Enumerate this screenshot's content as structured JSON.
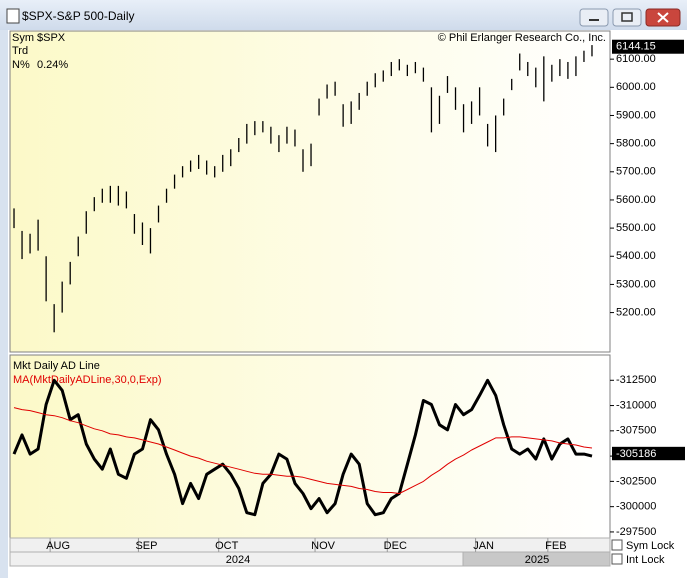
{
  "window": {
    "title": "$SPX-S&P 500-Daily"
  },
  "info": {
    "sym_label": "Sym",
    "sym_value": "$SPX",
    "trd_label": "Trd",
    "n_label": "N%",
    "n_value": "0.24%",
    "copyright": "© Phil Erlanger Research Co., Inc."
  },
  "controls": {
    "sym_lock": "Sym Lock",
    "int_lock": "Int Lock"
  },
  "years": [
    "2024",
    "2025"
  ],
  "chart_data": [
    {
      "type": "hilo",
      "color": "#000000",
      "high": [
        5570,
        5490,
        5480,
        5530,
        5400,
        5230,
        5310,
        5380,
        5470,
        5560,
        5610,
        5640,
        5650,
        5650,
        5630,
        5550,
        5520,
        5500,
        5580,
        5640,
        5690,
        5720,
        5740,
        5760,
        5740,
        5720,
        5760,
        5780,
        5820,
        5870,
        5880,
        5880,
        5860,
        5830,
        5860,
        5850,
        5780,
        5800,
        5960,
        6010,
        6020,
        5940,
        5950,
        5980,
        6020,
        6050,
        6060,
        6090,
        6100,
        6080,
        6090,
        6070,
        6000,
        5970,
        6040,
        6000,
        5940,
        5950,
        6000,
        5870,
        5900,
        5960,
        6030,
        6120,
        6090,
        6070,
        6110,
        6080,
        6100,
        6090,
        6110,
        6130,
        6150
      ],
      "low": [
        5500,
        5390,
        5410,
        5420,
        5240,
        5130,
        5200,
        5300,
        5400,
        5480,
        5560,
        5590,
        5590,
        5580,
        5570,
        5480,
        5440,
        5410,
        5520,
        5590,
        5640,
        5680,
        5700,
        5710,
        5690,
        5680,
        5700,
        5720,
        5770,
        5800,
        5830,
        5840,
        5800,
        5770,
        5800,
        5790,
        5700,
        5720,
        5900,
        5960,
        5970,
        5860,
        5870,
        5920,
        5970,
        6000,
        6020,
        6040,
        6060,
        6040,
        6050,
        6020,
        5840,
        5870,
        5980,
        5920,
        5840,
        5870,
        5900,
        5790,
        5770,
        5900,
        5990,
        6060,
        6040,
        6000,
        5950,
        6020,
        6040,
        6030,
        6040,
        6090,
        6110
      ],
      "last_value": 6144.15,
      "ylim": [
        5060,
        6200
      ],
      "yticks": [
        {
          "value": 5200,
          "label": "5200.00"
        },
        {
          "value": 5300,
          "label": "5300.00"
        },
        {
          "value": 5400,
          "label": "5400.00"
        },
        {
          "value": 5500,
          "label": "5500.00"
        },
        {
          "value": 5600,
          "label": "5600.00"
        },
        {
          "value": 5700,
          "label": "5700.00"
        },
        {
          "value": 5800,
          "label": "5800.00"
        },
        {
          "value": 5900,
          "label": "5900.00"
        },
        {
          "value": 6000,
          "label": "6000.00"
        },
        {
          "value": 6100,
          "label": "6100.00"
        }
      ]
    },
    {
      "type": "line",
      "categories": [
        null,
        null,
        null,
        null,
        null,
        "AUG",
        null,
        null,
        null,
        null,
        null,
        null,
        null,
        null,
        null,
        null,
        "SEP",
        null,
        null,
        null,
        null,
        null,
        null,
        null,
        null,
        null,
        "OCT",
        null,
        null,
        null,
        null,
        null,
        null,
        null,
        null,
        null,
        null,
        null,
        "NOV",
        null,
        null,
        null,
        null,
        null,
        null,
        null,
        null,
        "DEC",
        null,
        null,
        null,
        null,
        null,
        null,
        null,
        null,
        null,
        null,
        "JAN",
        null,
        null,
        null,
        null,
        null,
        null,
        null,
        null,
        "FEB",
        null,
        null,
        null,
        null,
        null
      ],
      "series": [
        {
          "name": "Mkt Daily AD Line",
          "color": "#000000",
          "width": 3,
          "values": [
            -305200,
            -307100,
            -305200,
            -305700,
            -310100,
            -312500,
            -311500,
            -308600,
            -309100,
            -306200,
            -304700,
            -303700,
            -305700,
            -303200,
            -302800,
            -305200,
            -305700,
            -308600,
            -307600,
            -305200,
            -303200,
            -300300,
            -302300,
            -300800,
            -303200,
            -303700,
            -304200,
            -303200,
            -301800,
            -299400,
            -299200,
            -302300,
            -303200,
            -305200,
            -304700,
            -302300,
            -301300,
            -299800,
            -300800,
            -299400,
            -300300,
            -303200,
            -305200,
            -304200,
            -300300,
            -299200,
            -299400,
            -300800,
            -301300,
            -304200,
            -307100,
            -310500,
            -310100,
            -308100,
            -307600,
            -310100,
            -309100,
            -309600,
            -311000,
            -312500,
            -311000,
            -308100,
            -305700,
            -305200,
            -305700,
            -304700,
            -306700,
            -304700,
            -306200,
            -306700,
            -305200,
            -305200,
            -305000
          ],
          "last_value": -305186
        },
        {
          "name": "MA(MktDailyADLine,30,0,Exp)",
          "color": "#e00000",
          "width": 1,
          "values": [
            -309800,
            -309600,
            -309500,
            -309300,
            -309100,
            -309000,
            -308800,
            -308500,
            -308300,
            -308000,
            -307700,
            -307500,
            -307200,
            -307100,
            -306900,
            -306800,
            -306600,
            -306400,
            -306200,
            -305900,
            -305600,
            -305300,
            -305000,
            -304800,
            -304500,
            -304300,
            -304100,
            -303900,
            -303700,
            -303500,
            -303300,
            -303200,
            -303200,
            -303100,
            -303000,
            -303000,
            -302900,
            -302700,
            -302500,
            -302300,
            -302200,
            -302100,
            -302000,
            -301800,
            -301700,
            -301500,
            -301400,
            -301400,
            -301300,
            -301700,
            -302100,
            -302500,
            -303100,
            -303600,
            -304200,
            -304700,
            -305100,
            -305600,
            -306000,
            -306400,
            -306800,
            -306800,
            -306900,
            -306900,
            -306800,
            -306700,
            -306600,
            -306500,
            -306300,
            -306200,
            -306100,
            -305900,
            -305800
          ],
          "last_value": -305323.9937
        }
      ],
      "ylim": [
        -296900,
        -315000
      ],
      "yticks": [
        -297500,
        -300000,
        -302500,
        -305000,
        -307500,
        -310000,
        -312500
      ]
    }
  ]
}
